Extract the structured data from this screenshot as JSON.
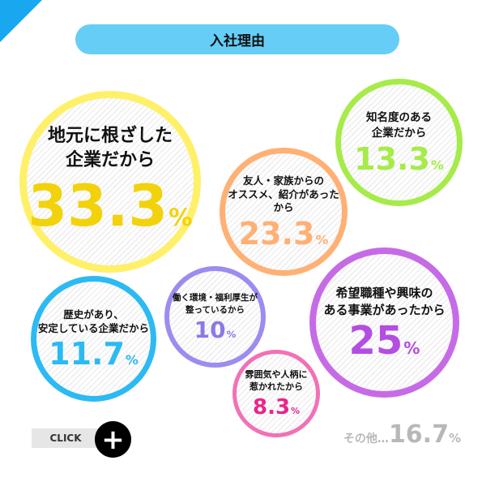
{
  "title": "入社理由",
  "bubbles": {
    "local": {
      "label1": "地元に根ざした",
      "label2": "企業だから",
      "value": "33.3",
      "unit": "%",
      "color": "#fff06a"
    },
    "name": {
      "label1": "知名度のある",
      "label2": "企業だから",
      "value": "13.3",
      "unit": "%",
      "color": "#a6eb4a"
    },
    "friend": {
      "label1": "友人・家族からの",
      "label2": "オススメ、紹介があったから",
      "value": "23.3",
      "unit": "%",
      "color": "#ffb075"
    },
    "hope": {
      "label1": "希望職種や興味の",
      "label2": "ある事業があったから",
      "value": "25",
      "unit": "%",
      "color": "#c66be6"
    },
    "env": {
      "label1": "働く環境・福利厚生が",
      "label2": "整っているから",
      "value": "10",
      "unit": "%",
      "color": "#9b8cf0"
    },
    "history": {
      "label1": "歴史があり、",
      "label2": "安定している企業だから",
      "value": "11.7",
      "unit": "%",
      "color": "#2cbaf2"
    },
    "mood": {
      "label1": "雰囲気や人柄に",
      "label2": "惹かれたから",
      "value": "8.3",
      "unit": "%",
      "color": "#f271b6"
    }
  },
  "click_label": "CLICK",
  "plus_icon": "+",
  "other": {
    "label": "その他…",
    "value": "16.7",
    "unit": "%"
  }
}
